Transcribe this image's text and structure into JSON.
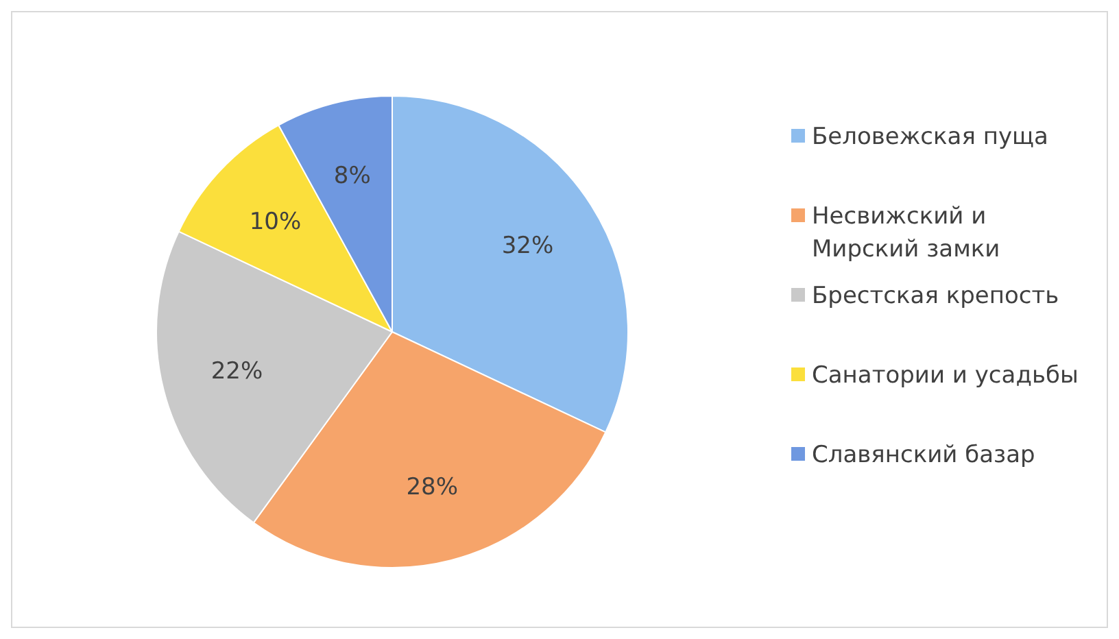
{
  "chart_data": {
    "type": "pie",
    "categories": [
      "Беловежская пуща",
      "Несвижский и Мирский замки",
      "Брестская крепость",
      "Санатории и усадьбы",
      "Славянский базар"
    ],
    "values": [
      32,
      28,
      22,
      10,
      8
    ],
    "colors": [
      "#8ebdee",
      "#f6a46a",
      "#c9c9c9",
      "#fbdf3c",
      "#6f98e0"
    ],
    "value_labels": [
      "32%",
      "28%",
      "22%",
      "10%",
      "8%"
    ],
    "legend": "right"
  }
}
